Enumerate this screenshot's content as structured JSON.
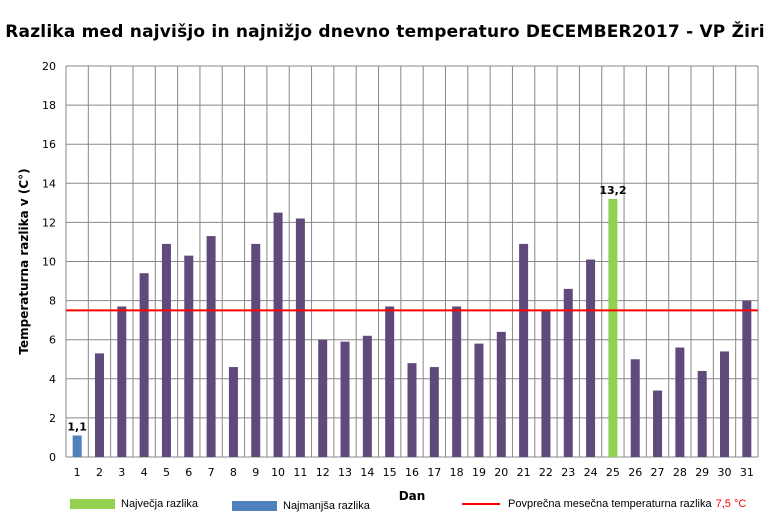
{
  "title": "Razlika med najvišjo in najnižjo dnevno temperaturo DECEMBER2017 - VP Žiri",
  "legend": {
    "max_label": "Največja razlika",
    "min_label": "Najmanjša razlika",
    "avg_label": "Povprečna mesečna temperaturna razlika",
    "avg_value": "7,5 °C"
  },
  "colors": {
    "bar": "#604a7b",
    "max": "#92d050",
    "min": "#4f81bd",
    "average_line": "#ff0000",
    "grid": "#888888"
  },
  "chart_data": {
    "type": "bar",
    "title": "Razlika med najvišjo in najnižjo dnevno temperaturo DECEMBER2017 - VP Žiri",
    "xlabel": "Dan",
    "ylabel": "Temperaturna razlika v (C°)",
    "ylim": [
      0,
      20
    ],
    "yticks": [
      "0",
      "2",
      "4",
      "6",
      "8",
      "10",
      "12",
      "14",
      "16",
      "18",
      "20"
    ],
    "grid": true,
    "categories": [
      "1",
      "2",
      "3",
      "4",
      "5",
      "6",
      "7",
      "8",
      "9",
      "10",
      "11",
      "12",
      "13",
      "14",
      "15",
      "16",
      "17",
      "18",
      "19",
      "20",
      "21",
      "22",
      "23",
      "24",
      "25",
      "26",
      "27",
      "28",
      "29",
      "30",
      "31"
    ],
    "values": [
      1.1,
      5.3,
      7.7,
      9.4,
      10.9,
      10.3,
      11.3,
      4.6,
      10.9,
      12.5,
      12.2,
      6.0,
      5.9,
      6.2,
      7.7,
      4.8,
      4.6,
      7.7,
      5.8,
      6.4,
      10.9,
      7.5,
      8.6,
      10.1,
      13.2,
      5.0,
      3.4,
      5.6,
      4.4,
      5.4,
      8.0
    ],
    "max_day": "25",
    "min_day": "1",
    "data_labels": [
      {
        "day": "1",
        "text": "1,1"
      },
      {
        "day": "25",
        "text": "13,2"
      }
    ],
    "average": 7.5,
    "legend_position": "bottom"
  }
}
